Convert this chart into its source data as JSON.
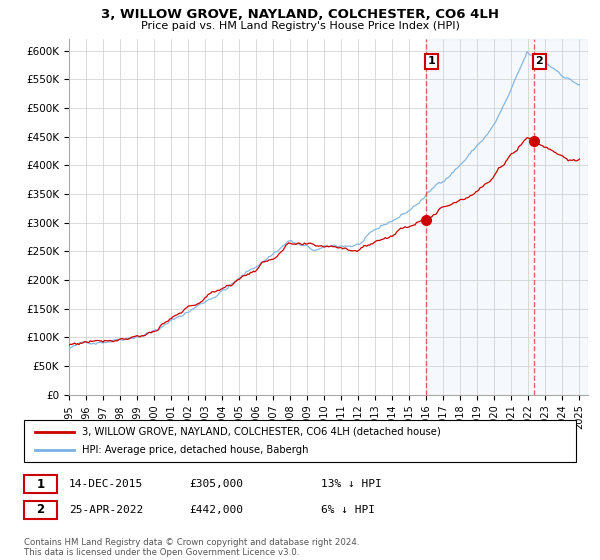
{
  "title": "3, WILLOW GROVE, NAYLAND, COLCHESTER, CO6 4LH",
  "subtitle": "Price paid vs. HM Land Registry's House Price Index (HPI)",
  "yticks": [
    0,
    50000,
    100000,
    150000,
    200000,
    250000,
    300000,
    350000,
    400000,
    450000,
    500000,
    550000,
    600000
  ],
  "ytick_labels": [
    "£0",
    "£50K",
    "£100K",
    "£150K",
    "£200K",
    "£250K",
    "£300K",
    "£350K",
    "£400K",
    "£450K",
    "£500K",
    "£550K",
    "£600K"
  ],
  "xlim_start": 1995.0,
  "xlim_end": 2025.5,
  "ylim_min": 0,
  "ylim_max": 620000,
  "hpi_color": "#7ab0e0",
  "price_color": "#cc0000",
  "sale1_x": 2015.96,
  "sale1_y": 305000,
  "sale1_label": "1",
  "sale2_x": 2022.32,
  "sale2_y": 442000,
  "sale2_label": "2",
  "vline_color": "#dd4444",
  "annotation_box_color": "#cc0000",
  "highlight_bg": "#ddeeff",
  "legend_label_red": "3, WILLOW GROVE, NAYLAND, COLCHESTER, CO6 4LH (detached house)",
  "legend_label_blue": "HPI: Average price, detached house, Babergh",
  "note1_date": "14-DEC-2015",
  "note1_price": "£305,000",
  "note1_info": "13% ↓ HPI",
  "note2_date": "25-APR-2022",
  "note2_price": "£442,000",
  "note2_info": "6% ↓ HPI",
  "footer": "Contains HM Land Registry data © Crown copyright and database right 2024.\nThis data is licensed under the Open Government Licence v3.0.",
  "xticks": [
    1995,
    1996,
    1997,
    1998,
    1999,
    2000,
    2001,
    2002,
    2003,
    2004,
    2005,
    2006,
    2007,
    2008,
    2009,
    2010,
    2011,
    2012,
    2013,
    2014,
    2015,
    2016,
    2017,
    2018,
    2019,
    2020,
    2021,
    2022,
    2023,
    2024,
    2025
  ]
}
